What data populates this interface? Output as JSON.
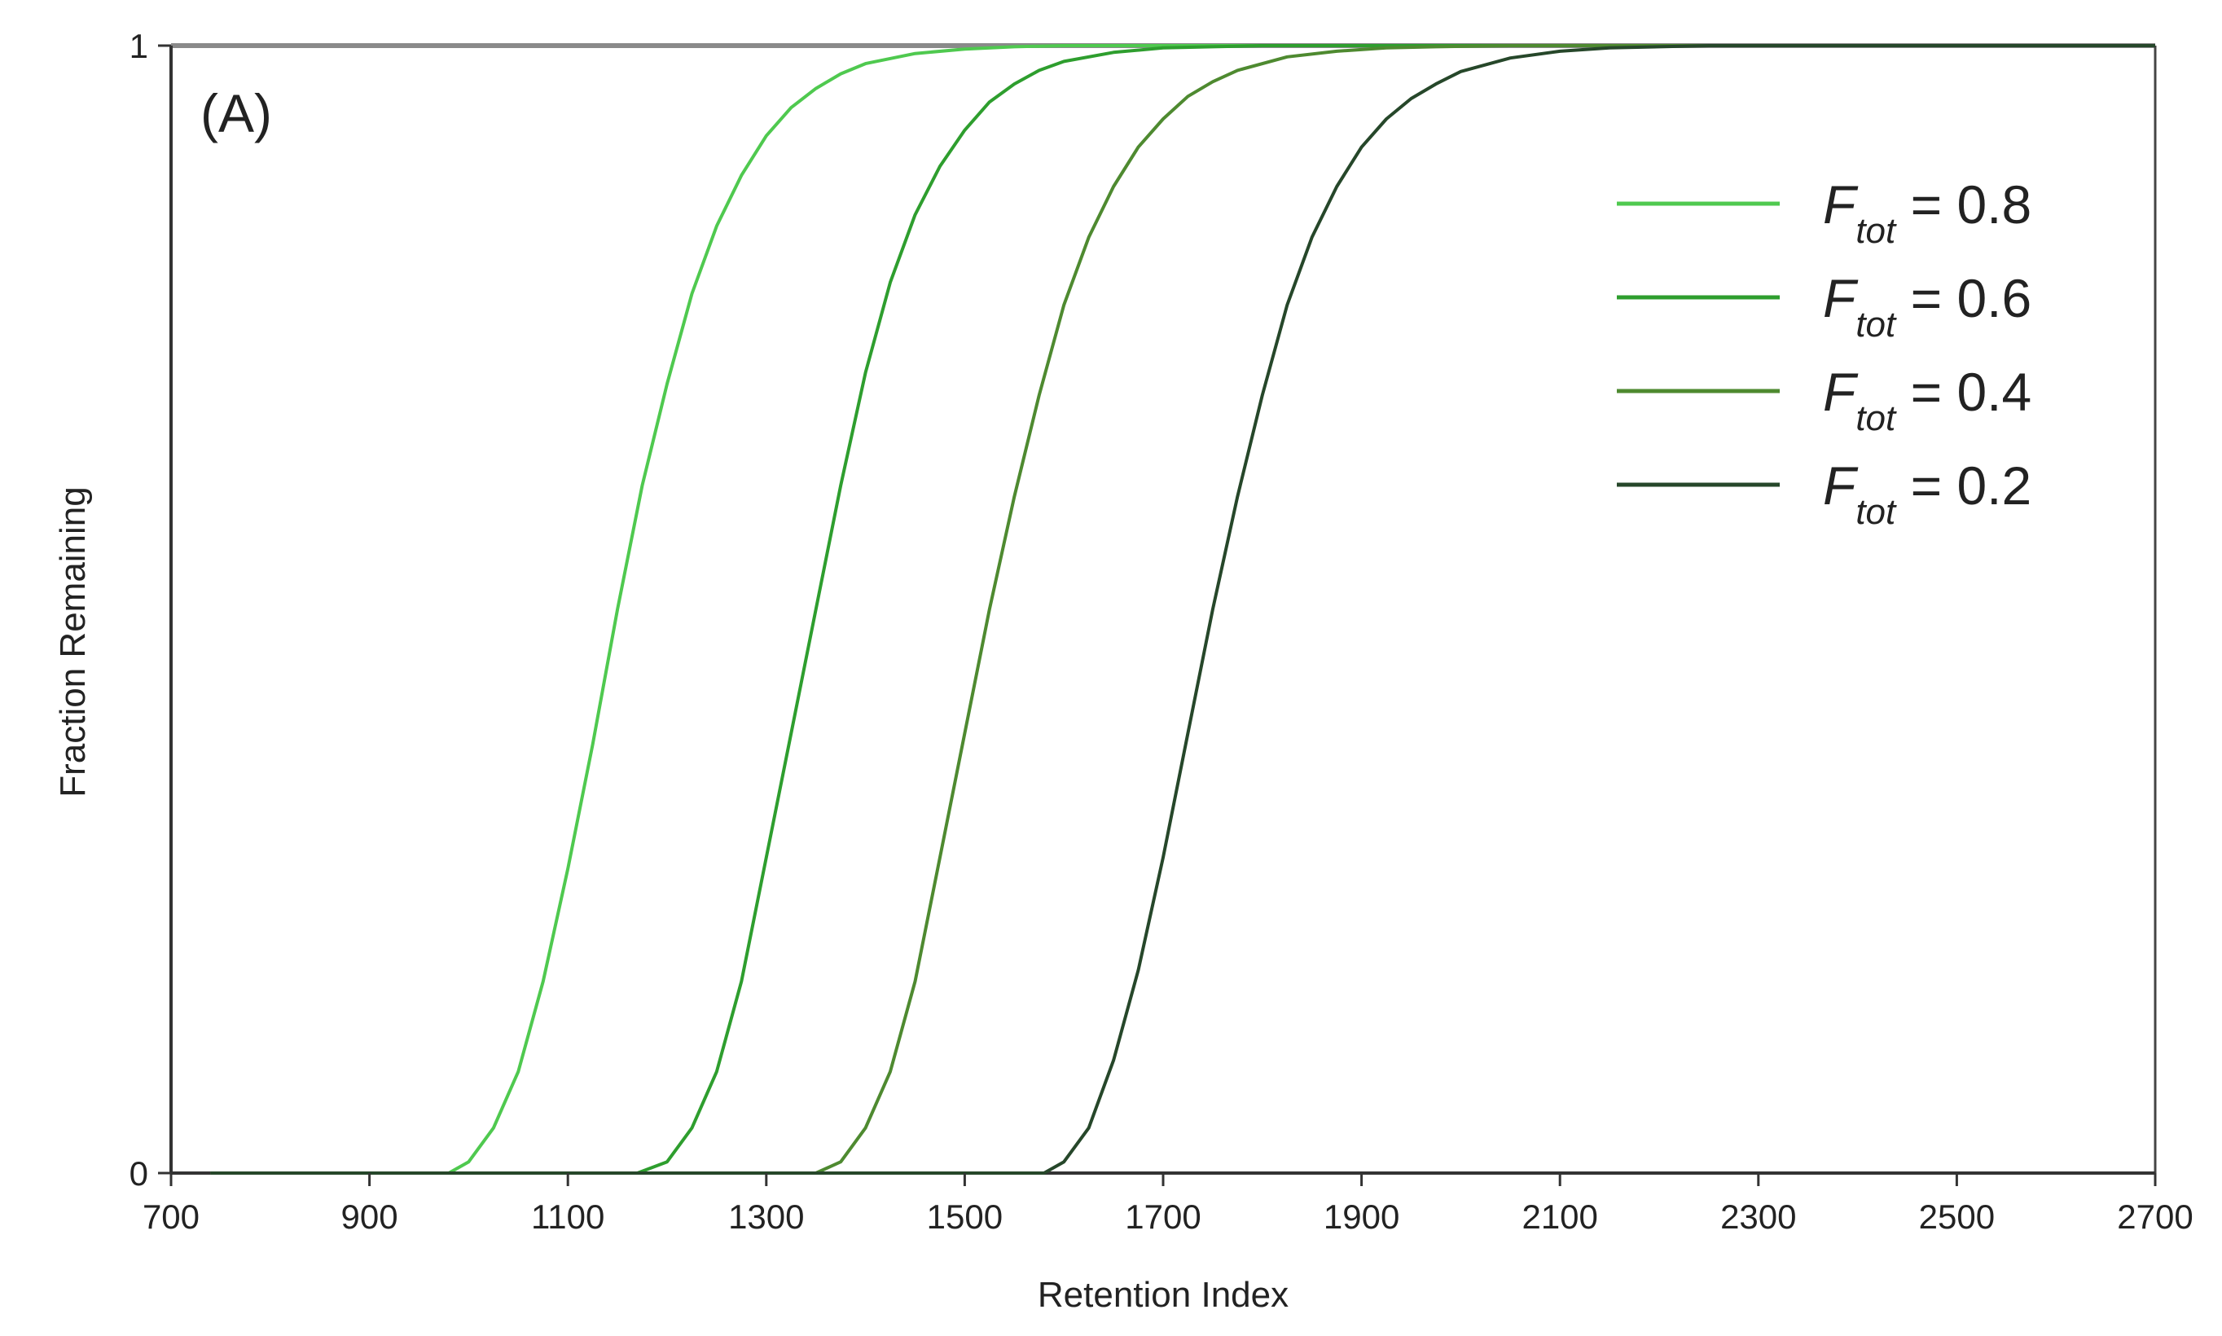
{
  "chart_data": {
    "type": "line",
    "title": "",
    "panel_label": "(A)",
    "xlabel": "Retention Index",
    "ylabel": "Fraction Remaining",
    "xlim": [
      700,
      2700
    ],
    "ylim": [
      0,
      1
    ],
    "x_ticks": [
      "700",
      "900",
      "1100",
      "1300",
      "1500",
      "1700",
      "1900",
      "2100",
      "2300",
      "2500",
      "2700"
    ],
    "y_ticks": [
      "0",
      "1"
    ],
    "grid": false,
    "legend_position": "top-right",
    "series": [
      {
        "name_main": "F",
        "name_sub": "tot",
        "name_value": " = 0.8",
        "color": "#4fc94f",
        "x": [
          740,
          980,
          1000,
          1025,
          1050,
          1075,
          1100,
          1125,
          1150,
          1175,
          1200,
          1225,
          1250,
          1275,
          1300,
          1325,
          1350,
          1375,
          1400,
          1450,
          1500,
          1550,
          1600,
          2700
        ],
        "y": [
          0,
          0,
          0.01,
          0.04,
          0.09,
          0.17,
          0.27,
          0.38,
          0.5,
          0.61,
          0.7,
          0.78,
          0.84,
          0.885,
          0.92,
          0.945,
          0.962,
          0.975,
          0.984,
          0.993,
          0.997,
          0.999,
          1,
          1
        ]
      },
      {
        "name_main": "F",
        "name_sub": "tot",
        "name_value": " = 0.6",
        "color": "#2e9e2e",
        "x": [
          740,
          1170,
          1200,
          1225,
          1250,
          1275,
          1300,
          1325,
          1350,
          1375,
          1400,
          1425,
          1450,
          1475,
          1500,
          1525,
          1550,
          1575,
          1600,
          1650,
          1700,
          1750,
          1800,
          2700
        ],
        "y": [
          0,
          0,
          0.01,
          0.04,
          0.09,
          0.17,
          0.28,
          0.39,
          0.5,
          0.61,
          0.71,
          0.79,
          0.85,
          0.893,
          0.925,
          0.95,
          0.966,
          0.978,
          0.986,
          0.994,
          0.998,
          0.999,
          1,
          1
        ]
      },
      {
        "name_main": "F",
        "name_sub": "tot",
        "name_value": " = 0.4",
        "color": "#4e8a30",
        "x": [
          740,
          1350,
          1375,
          1400,
          1425,
          1450,
          1475,
          1500,
          1525,
          1550,
          1575,
          1600,
          1625,
          1650,
          1675,
          1700,
          1725,
          1750,
          1775,
          1825,
          1875,
          1925,
          1975,
          2050,
          2700
        ],
        "y": [
          0,
          0,
          0.01,
          0.04,
          0.09,
          0.17,
          0.28,
          0.39,
          0.5,
          0.6,
          0.69,
          0.77,
          0.83,
          0.875,
          0.91,
          0.935,
          0.955,
          0.968,
          0.978,
          0.99,
          0.995,
          0.998,
          0.999,
          1,
          1
        ]
      },
      {
        "name_main": "F",
        "name_sub": "tot",
        "name_value": " = 0.2",
        "color": "#26472a",
        "x": [
          740,
          1580,
          1600,
          1625,
          1650,
          1675,
          1700,
          1725,
          1750,
          1775,
          1800,
          1825,
          1850,
          1875,
          1900,
          1925,
          1950,
          1975,
          2000,
          2050,
          2100,
          2150,
          2200,
          2250,
          2700
        ],
        "y": [
          0,
          0,
          0.01,
          0.04,
          0.1,
          0.18,
          0.28,
          0.39,
          0.5,
          0.6,
          0.69,
          0.77,
          0.83,
          0.875,
          0.91,
          0.935,
          0.953,
          0.966,
          0.977,
          0.989,
          0.995,
          0.998,
          0.999,
          1,
          1
        ]
      }
    ]
  }
}
